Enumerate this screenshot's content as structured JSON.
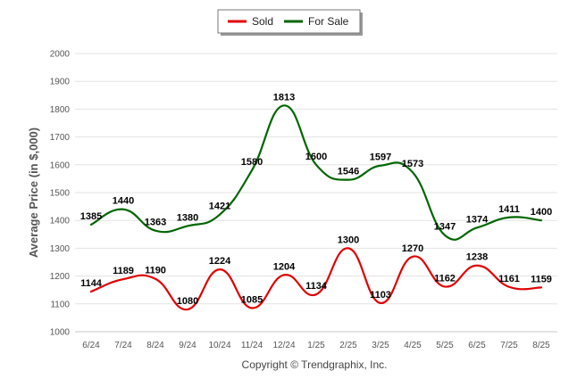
{
  "chart_data": {
    "type": "line",
    "categories": [
      "6/24",
      "7/24",
      "8/24",
      "9/24",
      "10/24",
      "11/24",
      "12/24",
      "1/25",
      "2/25",
      "3/25",
      "4/25",
      "5/25",
      "6/25",
      "7/25",
      "8/25"
    ],
    "series": [
      {
        "name": "Sold",
        "color": "#e00000",
        "values": [
          1144,
          1189,
          1190,
          1080,
          1224,
          1085,
          1204,
          1134,
          1300,
          1103,
          1270,
          1162,
          1238,
          1161,
          1159
        ]
      },
      {
        "name": "For Sale",
        "color": "#006600",
        "values": [
          1385,
          1440,
          1363,
          1380,
          1421,
          1580,
          1813,
          1600,
          1546,
          1597,
          1573,
          1347,
          1374,
          1411,
          1400
        ]
      }
    ],
    "ylabel": "Average Price (in $,000)",
    "xlabel": "",
    "ylim": [
      1000,
      2000
    ],
    "yticks": [
      1000,
      1100,
      1200,
      1300,
      1400,
      1500,
      1600,
      1700,
      1800,
      1900,
      2000
    ],
    "grid": true,
    "legend_position": "top-center",
    "data_labels": true
  },
  "footer": "Copyright © Trendgraphix, Inc."
}
